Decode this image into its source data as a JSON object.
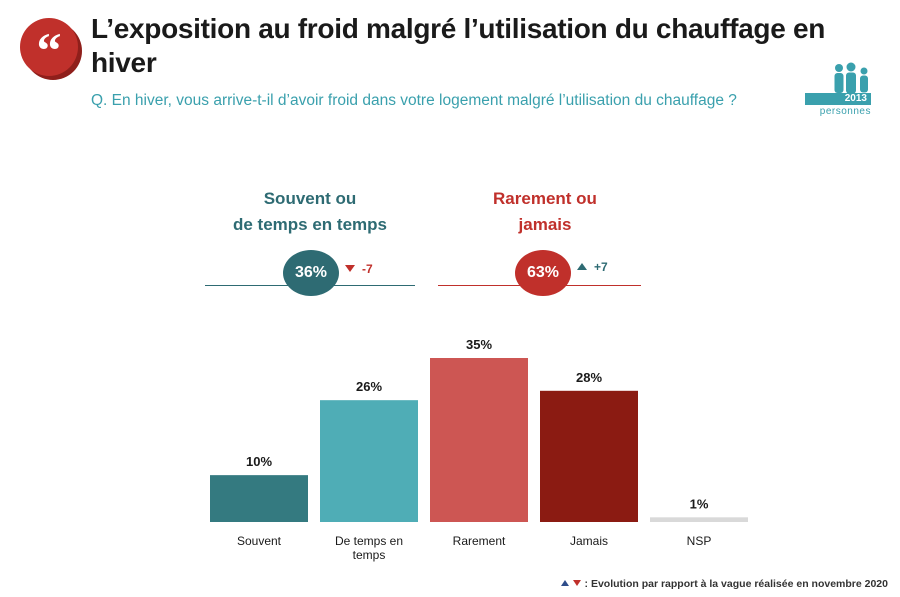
{
  "header": {
    "title": "L’exposition au froid malgré l’utilisation du chauffage en hiver",
    "question": "Q. En hiver, vous arrive-t-il d’avoir froid dans votre logement malgré l’utilisation du chauffage ?",
    "sample_count": "2013",
    "sample_label": "personnes"
  },
  "summary": [
    {
      "label_line1": "Souvent ou",
      "label_line2": "de temps en temps",
      "value": "36%",
      "evolution": "-7",
      "direction": "down",
      "color": "#2e6b73"
    },
    {
      "label_line1": "Rarement ou",
      "label_line2": "jamais",
      "value": "63%",
      "evolution": "+7",
      "direction": "up",
      "color": "#c0302b"
    }
  ],
  "chart_data": {
    "type": "bar",
    "categories": [
      "Souvent",
      "De temps en temps",
      "Rarement",
      "Jamais",
      "NSP"
    ],
    "values": [
      10,
      26,
      35,
      28,
      1
    ],
    "value_labels": [
      "10%",
      "26%",
      "35%",
      "28%",
      "1%"
    ],
    "colors": [
      "#347a80",
      "#4fadb6",
      "#cd5653",
      "#8b1b12",
      "#d9d9d9"
    ],
    "ylim": [
      0,
      35
    ],
    "grid": false
  },
  "footnote": ": Evolution par rapport à la vague réalisée en novembre 2020"
}
